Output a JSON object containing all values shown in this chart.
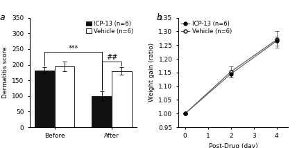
{
  "panel_a": {
    "categories": [
      "Before",
      "After"
    ],
    "icp13_means": [
      182,
      100
    ],
    "icp13_errors": [
      10,
      15
    ],
    "vehicle_means": [
      195,
      180
    ],
    "vehicle_errors": [
      15,
      12
    ],
    "bar_width": 0.35,
    "ylim": [
      0,
      350
    ],
    "yticks": [
      0,
      50,
      100,
      150,
      200,
      250,
      300,
      350
    ],
    "ylabel": "Dermatitis score",
    "icp13_color": "#111111",
    "vehicle_color": "#ffffff",
    "icp13_label": "ICP-13 (n=6)",
    "vehicle_label": "Vehicle (n=6)",
    "sig_before_after": "***",
    "sig_after_pair": "##",
    "sig1_y": 240,
    "sig2_y": 210
  },
  "panel_b": {
    "days": [
      0,
      2,
      4
    ],
    "icp13_means": [
      1.0,
      1.145,
      1.265
    ],
    "icp13_errors": [
      0.0,
      0.013,
      0.016
    ],
    "vehicle_means": [
      1.0,
      1.153,
      1.27
    ],
    "vehicle_errors": [
      0.0,
      0.02,
      0.03
    ],
    "xlim": [
      -0.3,
      4.5
    ],
    "xticks": [
      0,
      1,
      2,
      3,
      4
    ],
    "ylim": [
      0.95,
      1.35
    ],
    "ytick_vals": [
      0.95,
      1.0,
      1.05,
      1.1,
      1.15,
      1.2,
      1.25,
      1.3,
      1.35
    ],
    "ytick_labels": [
      "0.95",
      "1.00",
      "1.05",
      "1.10",
      "1.15",
      "1.20",
      "1.25",
      "1.30",
      "1.35"
    ],
    "ylabel": "Weight gain (ratio)",
    "xlabel": "Post-Drug (day)",
    "icp13_label": "ICP-13 (n=6)",
    "vehicle_label": "Vehicle (n=6)"
  },
  "label_a": "a",
  "label_b": "b",
  "background_color": "#ffffff",
  "fontsize": 6.5,
  "label_fontsize": 9
}
